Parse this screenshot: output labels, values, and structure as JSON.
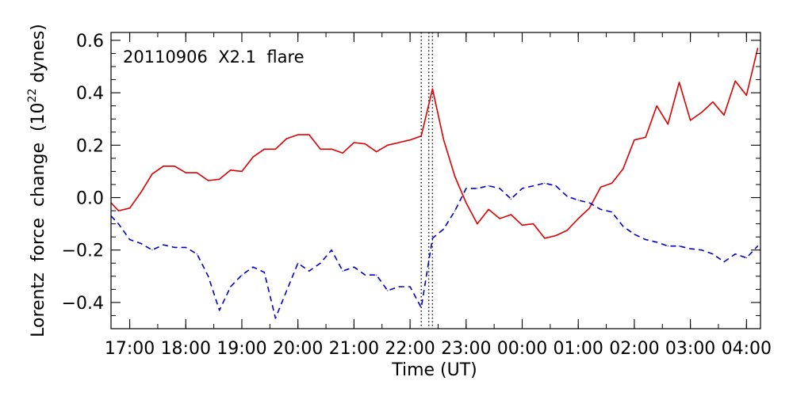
{
  "chart_data": {
    "type": "line",
    "annotation": "20110906  X2.1  flare",
    "xlabel": "Time (UT)",
    "ylabel_prefix": "Lorentz  force  change  (10",
    "ylabel_exponent": "22",
    "ylabel_suffix": " dynes)",
    "xlim": [
      "2011-09-06T16:40:00",
      "2011-09-07T04:15:00"
    ],
    "ylim": [
      -0.5,
      0.63
    ],
    "x_ticks": [
      {
        "value": "2011-09-06T17:00:00",
        "label": "17:00"
      },
      {
        "value": "2011-09-06T18:00:00",
        "label": "18:00"
      },
      {
        "value": "2011-09-06T19:00:00",
        "label": "19:00"
      },
      {
        "value": "2011-09-06T20:00:00",
        "label": "20:00"
      },
      {
        "value": "2011-09-06T21:00:00",
        "label": "21:00"
      },
      {
        "value": "2011-09-06T22:00:00",
        "label": "22:00"
      },
      {
        "value": "2011-09-06T23:00:00",
        "label": "23:00"
      },
      {
        "value": "2011-09-07T00:00:00",
        "label": "00:00"
      },
      {
        "value": "2011-09-07T01:00:00",
        "label": "01:00"
      },
      {
        "value": "2011-09-07T02:00:00",
        "label": "02:00"
      },
      {
        "value": "2011-09-07T03:00:00",
        "label": "03:00"
      },
      {
        "value": "2011-09-07T04:00:00",
        "label": "04:00"
      }
    ],
    "y_ticks": [
      {
        "value": -0.4,
        "label": "−0.4"
      },
      {
        "value": -0.2,
        "label": "−0.2"
      },
      {
        "value": 0.0,
        "label": "0.0"
      },
      {
        "value": 0.2,
        "label": "0.2"
      },
      {
        "value": 0.4,
        "label": "0.4"
      },
      {
        "value": 0.6,
        "label": "0.6"
      }
    ],
    "vertical_markers": [
      "2011-09-06T22:12:00",
      "2011-09-06T22:20:00",
      "2011-09-06T22:24:00"
    ],
    "series": [
      {
        "color": "#dd0000",
        "style": "solid",
        "points": [
          [
            "2011-09-06T16:40:00",
            -0.02
          ],
          [
            "2011-09-06T16:48:00",
            -0.05
          ],
          [
            "2011-09-06T17:00:00",
            -0.04
          ],
          [
            "2011-09-06T17:12:00",
            0.02
          ],
          [
            "2011-09-06T17:24:00",
            0.09
          ],
          [
            "2011-09-06T17:36:00",
            0.12
          ],
          [
            "2011-09-06T17:48:00",
            0.12
          ],
          [
            "2011-09-06T18:00:00",
            0.095
          ],
          [
            "2011-09-06T18:12:00",
            0.095
          ],
          [
            "2011-09-06T18:24:00",
            0.065
          ],
          [
            "2011-09-06T18:36:00",
            0.07
          ],
          [
            "2011-09-06T18:48:00",
            0.105
          ],
          [
            "2011-09-06T19:00:00",
            0.1
          ],
          [
            "2011-09-06T19:12:00",
            0.155
          ],
          [
            "2011-09-06T19:24:00",
            0.185
          ],
          [
            "2011-09-06T19:36:00",
            0.185
          ],
          [
            "2011-09-06T19:48:00",
            0.225
          ],
          [
            "2011-09-06T20:00:00",
            0.24
          ],
          [
            "2011-09-06T20:12:00",
            0.24
          ],
          [
            "2011-09-06T20:24:00",
            0.185
          ],
          [
            "2011-09-06T20:36:00",
            0.185
          ],
          [
            "2011-09-06T20:48:00",
            0.17
          ],
          [
            "2011-09-06T21:00:00",
            0.21
          ],
          [
            "2011-09-06T21:12:00",
            0.205
          ],
          [
            "2011-09-06T21:24:00",
            0.175
          ],
          [
            "2011-09-06T21:36:00",
            0.2
          ],
          [
            "2011-09-06T21:48:00",
            0.21
          ],
          [
            "2011-09-06T22:00:00",
            0.22
          ],
          [
            "2011-09-06T22:12:00",
            0.235
          ],
          [
            "2011-09-06T22:24:00",
            0.415
          ],
          [
            "2011-09-06T22:36:00",
            0.22
          ],
          [
            "2011-09-06T22:48:00",
            0.08
          ],
          [
            "2011-09-06T23:00:00",
            -0.02
          ],
          [
            "2011-09-06T23:12:00",
            -0.1
          ],
          [
            "2011-09-06T23:24:00",
            -0.045
          ],
          [
            "2011-09-06T23:36:00",
            -0.08
          ],
          [
            "2011-09-06T23:48:00",
            -0.065
          ],
          [
            "2011-09-07T00:00:00",
            -0.105
          ],
          [
            "2011-09-07T00:12:00",
            -0.1
          ],
          [
            "2011-09-07T00:24:00",
            -0.155
          ],
          [
            "2011-09-07T00:36:00",
            -0.145
          ],
          [
            "2011-09-07T00:48:00",
            -0.125
          ],
          [
            "2011-09-07T01:00:00",
            -0.08
          ],
          [
            "2011-09-07T01:12:00",
            -0.04
          ],
          [
            "2011-09-07T01:24:00",
            0.04
          ],
          [
            "2011-09-07T01:36:00",
            0.055
          ],
          [
            "2011-09-07T01:48:00",
            0.11
          ],
          [
            "2011-09-07T02:00:00",
            0.22
          ],
          [
            "2011-09-07T02:12:00",
            0.23
          ],
          [
            "2011-09-07T02:24:00",
            0.35
          ],
          [
            "2011-09-07T02:36:00",
            0.28
          ],
          [
            "2011-09-07T02:48:00",
            0.44
          ],
          [
            "2011-09-07T03:00:00",
            0.295
          ],
          [
            "2011-09-07T03:12:00",
            0.325
          ],
          [
            "2011-09-07T03:24:00",
            0.365
          ],
          [
            "2011-09-07T03:36:00",
            0.315
          ],
          [
            "2011-09-07T03:48:00",
            0.445
          ],
          [
            "2011-09-07T04:00:00",
            0.39
          ],
          [
            "2011-09-07T04:12:00",
            0.57
          ]
        ]
      },
      {
        "color": "#0000cc",
        "style": "dashed",
        "points": [
          [
            "2011-09-06T16:40:00",
            -0.07
          ],
          [
            "2011-09-06T16:48:00",
            -0.1
          ],
          [
            "2011-09-06T17:00:00",
            -0.16
          ],
          [
            "2011-09-06T17:12:00",
            -0.175
          ],
          [
            "2011-09-06T17:24:00",
            -0.2
          ],
          [
            "2011-09-06T17:36:00",
            -0.18
          ],
          [
            "2011-09-06T17:48:00",
            -0.19
          ],
          [
            "2011-09-06T18:00:00",
            -0.19
          ],
          [
            "2011-09-06T18:12:00",
            -0.215
          ],
          [
            "2011-09-06T18:24:00",
            -0.3
          ],
          [
            "2011-09-06T18:36:00",
            -0.43
          ],
          [
            "2011-09-06T18:48:00",
            -0.34
          ],
          [
            "2011-09-06T19:00:00",
            -0.295
          ],
          [
            "2011-09-06T19:12:00",
            -0.265
          ],
          [
            "2011-09-06T19:24:00",
            -0.285
          ],
          [
            "2011-09-06T19:36:00",
            -0.46
          ],
          [
            "2011-09-06T19:48:00",
            -0.355
          ],
          [
            "2011-09-06T20:00:00",
            -0.25
          ],
          [
            "2011-09-06T20:12:00",
            -0.28
          ],
          [
            "2011-09-06T20:24:00",
            -0.25
          ],
          [
            "2011-09-06T20:36:00",
            -0.2
          ],
          [
            "2011-09-06T20:48:00",
            -0.28
          ],
          [
            "2011-09-06T21:00:00",
            -0.265
          ],
          [
            "2011-09-06T21:12:00",
            -0.295
          ],
          [
            "2011-09-06T21:24:00",
            -0.295
          ],
          [
            "2011-09-06T21:36:00",
            -0.355
          ],
          [
            "2011-09-06T21:48:00",
            -0.34
          ],
          [
            "2011-09-06T22:00:00",
            -0.34
          ],
          [
            "2011-09-06T22:12:00",
            -0.42
          ],
          [
            "2011-09-06T22:24:00",
            -0.155
          ],
          [
            "2011-09-06T22:36:00",
            -0.12
          ],
          [
            "2011-09-06T22:48:00",
            -0.05
          ],
          [
            "2011-09-06T23:00:00",
            0.035
          ],
          [
            "2011-09-06T23:12:00",
            0.035
          ],
          [
            "2011-09-06T23:24:00",
            0.045
          ],
          [
            "2011-09-06T23:36:00",
            0.035
          ],
          [
            "2011-09-06T23:48:00",
            -0.005
          ],
          [
            "2011-09-07T00:00:00",
            0.035
          ],
          [
            "2011-09-07T00:12:00",
            0.045
          ],
          [
            "2011-09-07T00:24:00",
            0.055
          ],
          [
            "2011-09-07T00:36:00",
            0.045
          ],
          [
            "2011-09-07T00:48:00",
            0.005
          ],
          [
            "2011-09-07T01:00:00",
            -0.01
          ],
          [
            "2011-09-07T01:12:00",
            -0.02
          ],
          [
            "2011-09-07T01:24:00",
            -0.045
          ],
          [
            "2011-09-07T01:36:00",
            -0.055
          ],
          [
            "2011-09-07T01:48:00",
            -0.11
          ],
          [
            "2011-09-07T02:00:00",
            -0.14
          ],
          [
            "2011-09-07T02:12:00",
            -0.16
          ],
          [
            "2011-09-07T02:24:00",
            -0.17
          ],
          [
            "2011-09-07T02:36:00",
            -0.185
          ],
          [
            "2011-09-07T02:48:00",
            -0.185
          ],
          [
            "2011-09-07T03:00:00",
            -0.195
          ],
          [
            "2011-09-07T03:12:00",
            -0.2
          ],
          [
            "2011-09-07T03:24:00",
            -0.215
          ],
          [
            "2011-09-07T03:36:00",
            -0.245
          ],
          [
            "2011-09-07T03:48:00",
            -0.215
          ],
          [
            "2011-09-07T04:00:00",
            -0.23
          ],
          [
            "2011-09-07T04:12:00",
            -0.185
          ]
        ]
      }
    ]
  }
}
